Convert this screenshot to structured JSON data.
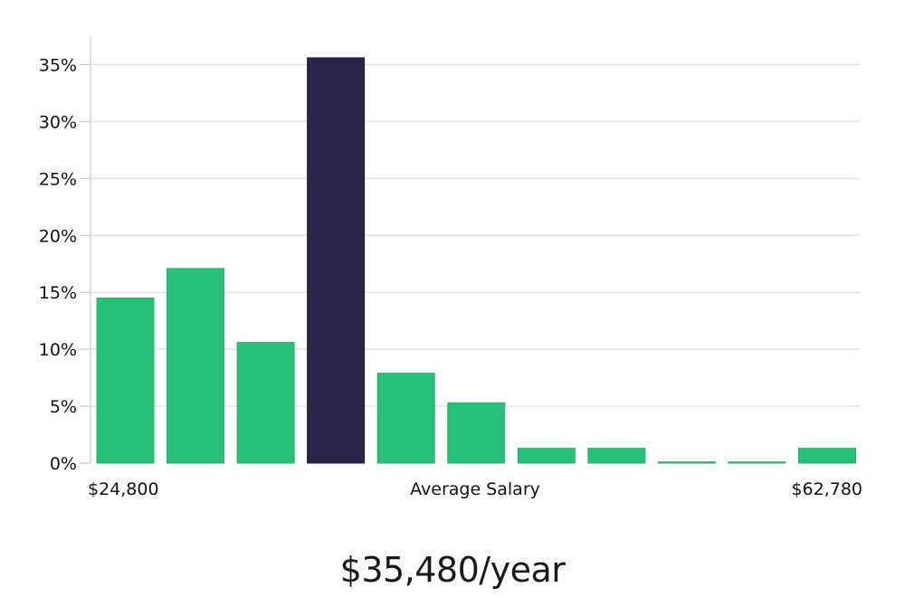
{
  "chart_data": {
    "type": "bar",
    "title": "",
    "xlabel": "Average Salary",
    "ylabel": "",
    "ylim": [
      0,
      37.5
    ],
    "yticks": [
      0,
      5,
      10,
      15,
      20,
      25,
      30,
      35
    ],
    "ytick_labels": [
      "0%",
      "5%",
      "10%",
      "15%",
      "20%",
      "25%",
      "30%",
      "35%"
    ],
    "x_min_label": "$24,800",
    "x_max_label": "$62,780",
    "values": [
      14.5,
      17.1,
      10.6,
      35.6,
      7.9,
      5.3,
      1.3,
      1.3,
      0.1,
      0.1,
      1.3
    ],
    "highlight_index": 3,
    "grid": true,
    "colors": {
      "bar": "#2abf78",
      "highlight": "#292645",
      "grid": "#e3e3e3",
      "axis": "#d6d6d6"
    }
  },
  "summary": {
    "salary_text": "$35,480/year"
  }
}
